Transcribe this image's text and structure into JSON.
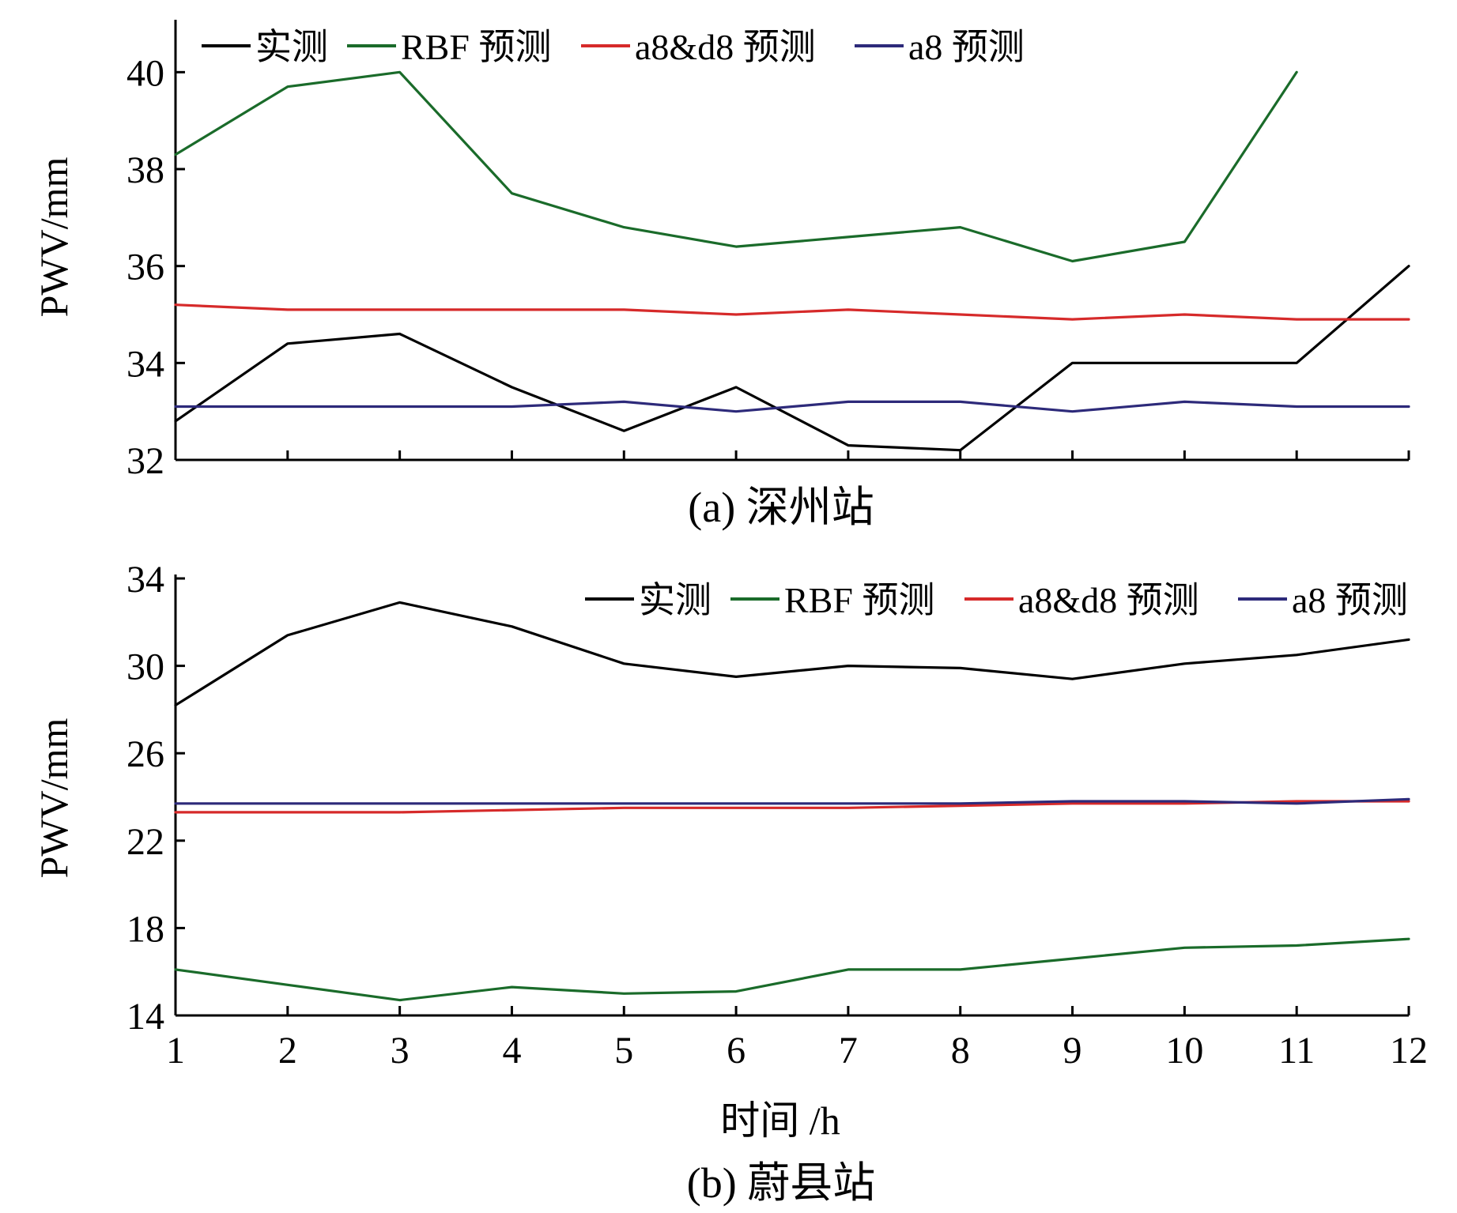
{
  "chart_data": [
    {
      "type": "line",
      "caption": "(a) 深州站",
      "ylabel": "PWV/mm",
      "xlabel": "",
      "x": [
        1,
        2,
        3,
        4,
        5,
        6,
        7,
        8,
        9,
        10,
        11,
        12
      ],
      "ylim": [
        32,
        41
      ],
      "yticks": [
        32,
        34,
        36,
        38,
        40
      ],
      "xticks": [],
      "legend_position": "top-left",
      "series": [
        {
          "name": "实测",
          "color": "#000000",
          "values": [
            32.8,
            34.4,
            34.6,
            33.5,
            32.6,
            33.5,
            32.3,
            32.2,
            34.0,
            34.0,
            34.0,
            36.0
          ]
        },
        {
          "name": "RBF 预测",
          "color": "#1a6b2a",
          "values": [
            38.3,
            39.7,
            40.0,
            37.5,
            36.8,
            36.4,
            36.6,
            36.8,
            36.1,
            36.5,
            40.0,
            null
          ]
        },
        {
          "name": "a8&d8 预测",
          "color": "#d62a2a",
          "values": [
            35.2,
            35.1,
            35.1,
            35.1,
            35.1,
            35.0,
            35.1,
            35.0,
            34.9,
            35.0,
            34.9,
            34.9
          ]
        },
        {
          "name": "a8 预测",
          "color": "#2d2a7a",
          "values": [
            33.1,
            33.1,
            33.1,
            33.1,
            33.2,
            33.0,
            33.2,
            33.2,
            33.0,
            33.2,
            33.1,
            33.1
          ]
        }
      ]
    },
    {
      "type": "line",
      "caption": "(b) 蔚县站",
      "ylabel": "PWV/mm",
      "xlabel": "时间 /h",
      "x": [
        1,
        2,
        3,
        4,
        5,
        6,
        7,
        8,
        9,
        10,
        11,
        12
      ],
      "ylim": [
        14,
        34
      ],
      "yticks": [
        14,
        18,
        22,
        26,
        30,
        34
      ],
      "xticks": [
        "1",
        "2",
        "3",
        "4",
        "5",
        "6",
        "7",
        "8",
        "9",
        "10",
        "11",
        "12"
      ],
      "legend_position": "top-right",
      "series": [
        {
          "name": "实测",
          "color": "#000000",
          "values": [
            28.2,
            31.4,
            32.9,
            31.8,
            30.1,
            29.5,
            30.0,
            29.9,
            29.4,
            30.1,
            30.5,
            31.2
          ]
        },
        {
          "name": "RBF 预测",
          "color": "#1a6b2a",
          "values": [
            16.1,
            15.4,
            14.7,
            15.3,
            15.0,
            15.1,
            16.1,
            16.1,
            16.6,
            17.1,
            17.2,
            17.5
          ]
        },
        {
          "name": "a8&d8 预测",
          "color": "#d62a2a",
          "values": [
            23.3,
            23.3,
            23.3,
            23.4,
            23.5,
            23.5,
            23.5,
            23.6,
            23.7,
            23.7,
            23.8,
            23.8
          ]
        },
        {
          "name": "a8 预测",
          "color": "#2d2a7a",
          "values": [
            23.7,
            23.7,
            23.7,
            23.7,
            23.7,
            23.7,
            23.7,
            23.7,
            23.8,
            23.8,
            23.7,
            23.9
          ]
        }
      ]
    }
  ]
}
